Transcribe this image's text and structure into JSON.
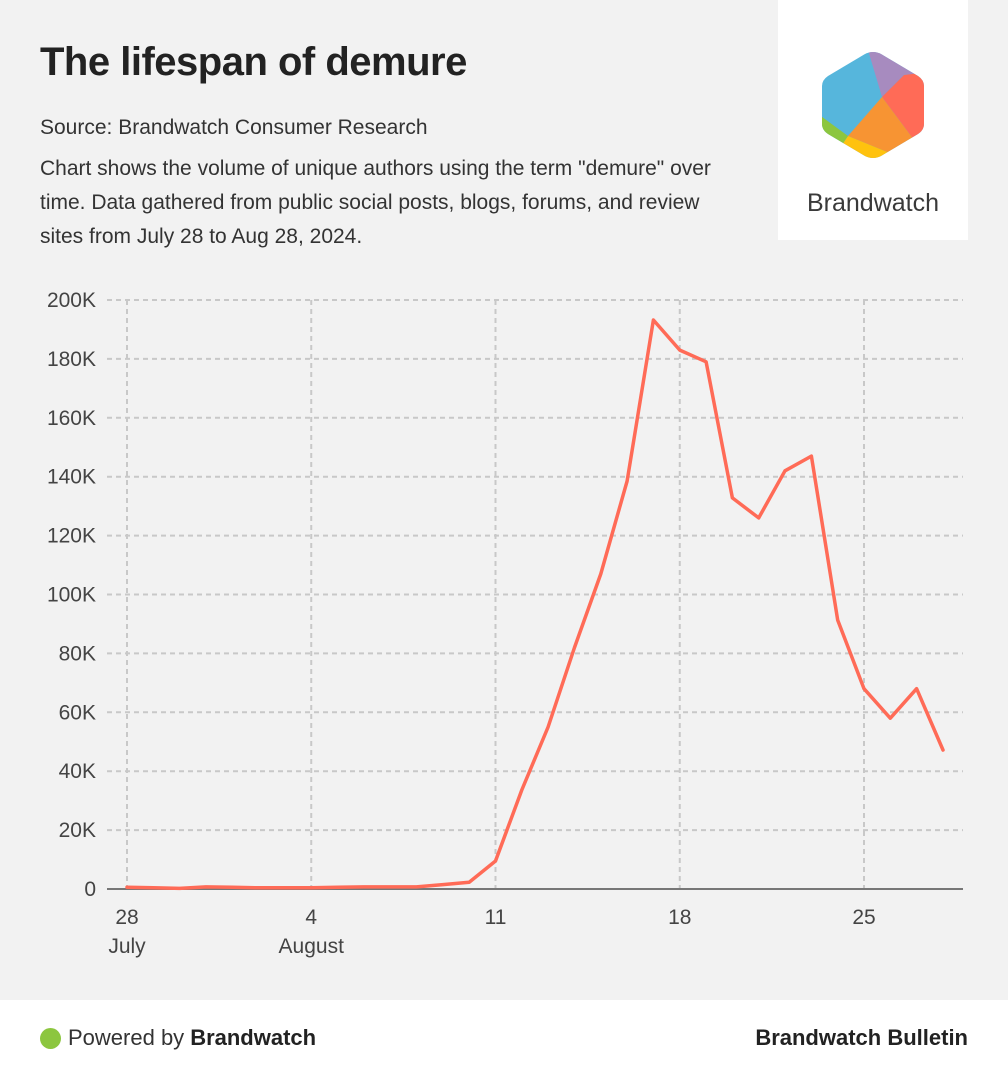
{
  "header": {
    "title": "The lifespan of demure",
    "source": "Source: Brandwatch Consumer Research",
    "description": "Chart shows the volume of unique authors using the term \"demure\" over time. Data gathered from public social posts, blogs, forums, and review sites from July 28 to Aug 28, 2024."
  },
  "logo": {
    "text": "Brandwatch",
    "colors": [
      "#56b6dc",
      "#a78bbf",
      "#ff6b57",
      "#f79433",
      "#ffc20e",
      "#8cc63f"
    ]
  },
  "footer": {
    "powered_prefix": "Powered by",
    "powered_brand": "Brandwatch",
    "dot_color": "#8cc63f",
    "bulletin": "Brandwatch Bulletin"
  },
  "chart_data": {
    "type": "line",
    "title": "The lifespan of demure",
    "xlabel": "",
    "ylabel": "",
    "ylim": [
      0,
      200000
    ],
    "grid": true,
    "line_color": "#ff6b57",
    "y_ticks": [
      {
        "value": 0,
        "label": "0"
      },
      {
        "value": 20000,
        "label": "20K"
      },
      {
        "value": 40000,
        "label": "40K"
      },
      {
        "value": 60000,
        "label": "60K"
      },
      {
        "value": 80000,
        "label": "80K"
      },
      {
        "value": 100000,
        "label": "100K"
      },
      {
        "value": 120000,
        "label": "120K"
      },
      {
        "value": 140000,
        "label": "140K"
      },
      {
        "value": 160000,
        "label": "160K"
      },
      {
        "value": 180000,
        "label": "180K"
      },
      {
        "value": 200000,
        "label": "200K"
      }
    ],
    "x_ticks": [
      {
        "index": 0,
        "label": "28",
        "sublabel": "July"
      },
      {
        "index": 7,
        "label": "4",
        "sublabel": "August"
      },
      {
        "index": 14,
        "label": "11",
        "sublabel": ""
      },
      {
        "index": 21,
        "label": "18",
        "sublabel": ""
      },
      {
        "index": 28,
        "label": "25",
        "sublabel": ""
      }
    ],
    "x_range_days": 33,
    "series": [
      {
        "name": "Unique authors",
        "x": [
          "2024-07-28",
          "2024-07-29",
          "2024-07-30",
          "2024-07-31",
          "2024-08-01",
          "2024-08-02",
          "2024-08-03",
          "2024-08-04",
          "2024-08-05",
          "2024-08-06",
          "2024-08-07",
          "2024-08-08",
          "2024-08-09",
          "2024-08-10",
          "2024-08-11",
          "2024-08-12",
          "2024-08-13",
          "2024-08-14",
          "2024-08-15",
          "2024-08-16",
          "2024-08-17",
          "2024-08-18",
          "2024-08-19",
          "2024-08-20",
          "2024-08-21",
          "2024-08-22",
          "2024-08-23",
          "2024-08-24",
          "2024-08-25",
          "2024-08-26",
          "2024-08-27",
          "2024-08-28"
        ],
        "values": [
          600,
          400,
          200,
          700,
          600,
          400,
          400,
          400,
          600,
          700,
          700,
          700,
          1500,
          2300,
          9500,
          33600,
          55000,
          82000,
          107000,
          138500,
          193200,
          183000,
          179000,
          132800,
          126000,
          142000,
          147000,
          91300,
          68000,
          58000,
          68000,
          47200
        ]
      }
    ]
  }
}
